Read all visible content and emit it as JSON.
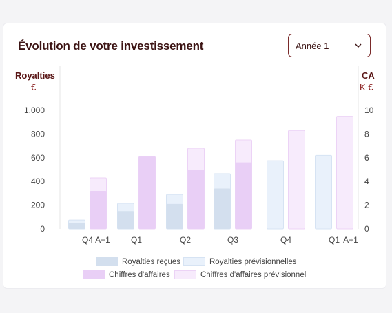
{
  "title": "Évolution de votre investissement",
  "year_select": {
    "value": "Année 1"
  },
  "colors": {
    "royalties_recues": "#d3dfee",
    "royalties_prev": "#e9f1fb",
    "ca": "#e9cff6",
    "ca_prev": "#f7ebfc",
    "grid": "#e6e6e6",
    "axis_text": "#444444",
    "brand": "#5a1616"
  },
  "chart_data": {
    "type": "bar",
    "left_axis": {
      "title": "Royalties",
      "unit": "€",
      "ticks": [
        "1,000",
        "800",
        "600",
        "400",
        "200",
        "0"
      ],
      "ylim": [
        0,
        1000
      ]
    },
    "right_axis": {
      "title": "CA",
      "unit": "K €",
      "ticks": [
        "10",
        "8",
        "6",
        "4",
        "2",
        "0"
      ],
      "ylim": [
        0,
        10
      ]
    },
    "categories": [
      "Q4 A−1",
      "Q1",
      "Q2",
      "Q3",
      "Q4",
      "Q1 A+1"
    ],
    "category_labels": [
      {
        "main": "Q4",
        "suffix": "A−1"
      },
      {
        "main": "Q1",
        "suffix": ""
      },
      {
        "main": "Q2",
        "suffix": ""
      },
      {
        "main": "Q3",
        "suffix": ""
      },
      {
        "main": "Q4",
        "suffix": ""
      },
      {
        "main": "Q1",
        "suffix": "A+1"
      }
    ],
    "series": [
      {
        "name": "Royalties reçues",
        "axis": "left",
        "values": [
          50,
          150,
          210,
          340,
          0,
          0
        ]
      },
      {
        "name": "Royalties prévisionnelles",
        "axis": "left",
        "values": [
          75,
          215,
          290,
          465,
          575,
          620
        ]
      },
      {
        "name": "Chiffres d'affaires",
        "axis": "right",
        "values": [
          3.2,
          6.1,
          5.0,
          5.6,
          0,
          0
        ]
      },
      {
        "name": "Chiffres d'affaires prévisionnel",
        "axis": "right",
        "values": [
          4.3,
          6.1,
          6.8,
          7.5,
          8.3,
          9.5
        ]
      }
    ]
  },
  "legend": [
    {
      "label": "Royalties reçues"
    },
    {
      "label": "Royalties prévisionnelles"
    },
    {
      "label": "Chiffres d'affaires"
    },
    {
      "label": "Chiffres d'affaires prévisionnel"
    }
  ]
}
